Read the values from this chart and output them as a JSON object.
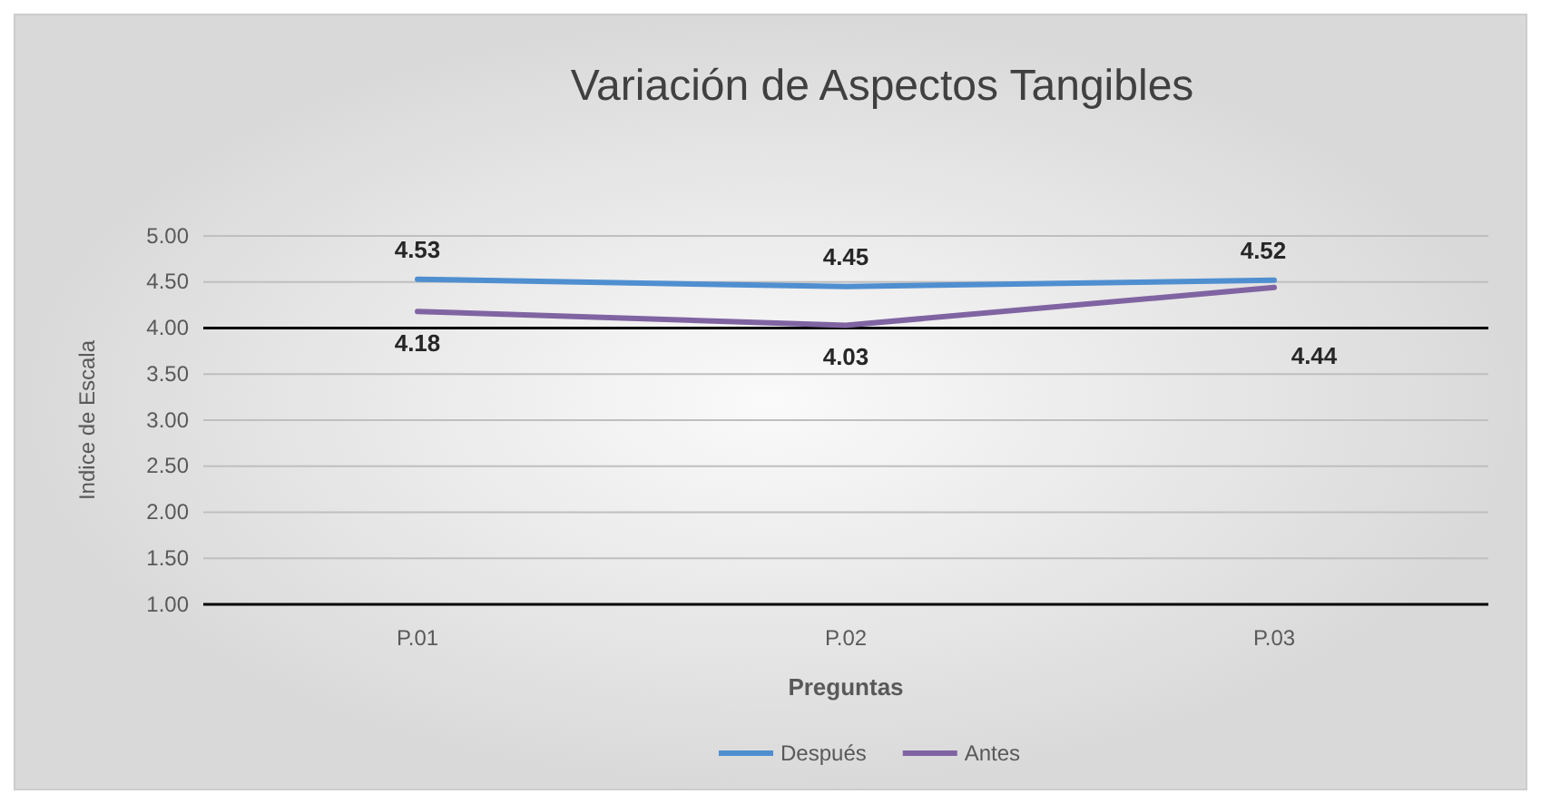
{
  "chart_data": {
    "type": "line",
    "title": "Variación de Aspectos Tangibles",
    "xlabel": "Preguntas",
    "ylabel": "Indice de Escala",
    "categories": [
      "P.01",
      "P.02",
      "P.03"
    ],
    "series": [
      {
        "name": "Después",
        "color": "#4f8fd0",
        "values": [
          4.53,
          4.45,
          4.52
        ]
      },
      {
        "name": "Antes",
        "color": "#8064a2",
        "values": [
          4.18,
          4.03,
          4.44
        ]
      }
    ],
    "ylim": [
      1,
      5
    ],
    "yticks": [
      {
        "value": 1,
        "label": "1.00"
      },
      {
        "value": 1.5,
        "label": "1.50"
      },
      {
        "value": 2,
        "label": "2.00"
      },
      {
        "value": 2.5,
        "label": "2.50"
      },
      {
        "value": 3,
        "label": "3.00"
      },
      {
        "value": 3.5,
        "label": "3.50"
      },
      {
        "value": 4,
        "label": "4.00"
      },
      {
        "value": 4.5,
        "label": "4.50"
      },
      {
        "value": 5,
        "label": "5.00"
      }
    ],
    "ref_lines": [
      {
        "axis": "y",
        "value": 4,
        "color": "#000000"
      }
    ],
    "grid": "y",
    "data_labels": true,
    "legend": "bottom",
    "marker": "none",
    "line_style": "solid"
  }
}
